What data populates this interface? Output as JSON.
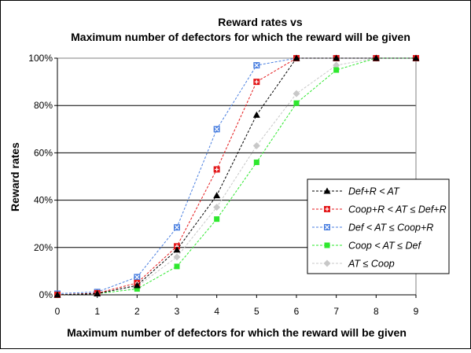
{
  "chart_data": {
    "type": "line",
    "title": "Reward rates vs",
    "subtitle": "Maximum number of defectors for which the reward will be given",
    "xlabel": "Maximum number of defectors for which the reward will be given",
    "ylabel": "Reward rates",
    "x": [
      0,
      1,
      2,
      3,
      4,
      5,
      6,
      7,
      8,
      9
    ],
    "xlim": [
      0,
      9
    ],
    "ylim": [
      0,
      100
    ],
    "y_ticks": [
      "0%",
      "20%",
      "40%",
      "60%",
      "80%",
      "100%"
    ],
    "grid": "horizontal",
    "legend_position": "right",
    "series": [
      {
        "name": "Def+R < AT",
        "marker": "triangle",
        "color": "#000000",
        "values": [
          0,
          0.5,
          4,
          19,
          42,
          76,
          100,
          100,
          100,
          100
        ]
      },
      {
        "name": "Coop+R < AT ≤ Def+R",
        "marker": "square-plus",
        "color": "#e41a1c",
        "values": [
          0,
          0.7,
          5,
          20.5,
          53,
          90,
          100,
          100,
          100,
          100
        ]
      },
      {
        "name": "Def < AT ≤ Coop+R",
        "marker": "square-x",
        "color": "#4a7fe0",
        "values": [
          0.5,
          1.2,
          7.5,
          28.5,
          70,
          97,
          100,
          100,
          100,
          100
        ]
      },
      {
        "name": "Coop < AT ≤ Def",
        "marker": "square",
        "color": "#2ee82e",
        "values": [
          0,
          0.5,
          2.5,
          12,
          32,
          56,
          81,
          95,
          100,
          100
        ]
      },
      {
        "name": "AT ≤ Coop",
        "marker": "diamond",
        "color": "#c8c8c8",
        "values": [
          0,
          0.7,
          3.5,
          16,
          37,
          63,
          85,
          97,
          100,
          100
        ]
      }
    ]
  }
}
